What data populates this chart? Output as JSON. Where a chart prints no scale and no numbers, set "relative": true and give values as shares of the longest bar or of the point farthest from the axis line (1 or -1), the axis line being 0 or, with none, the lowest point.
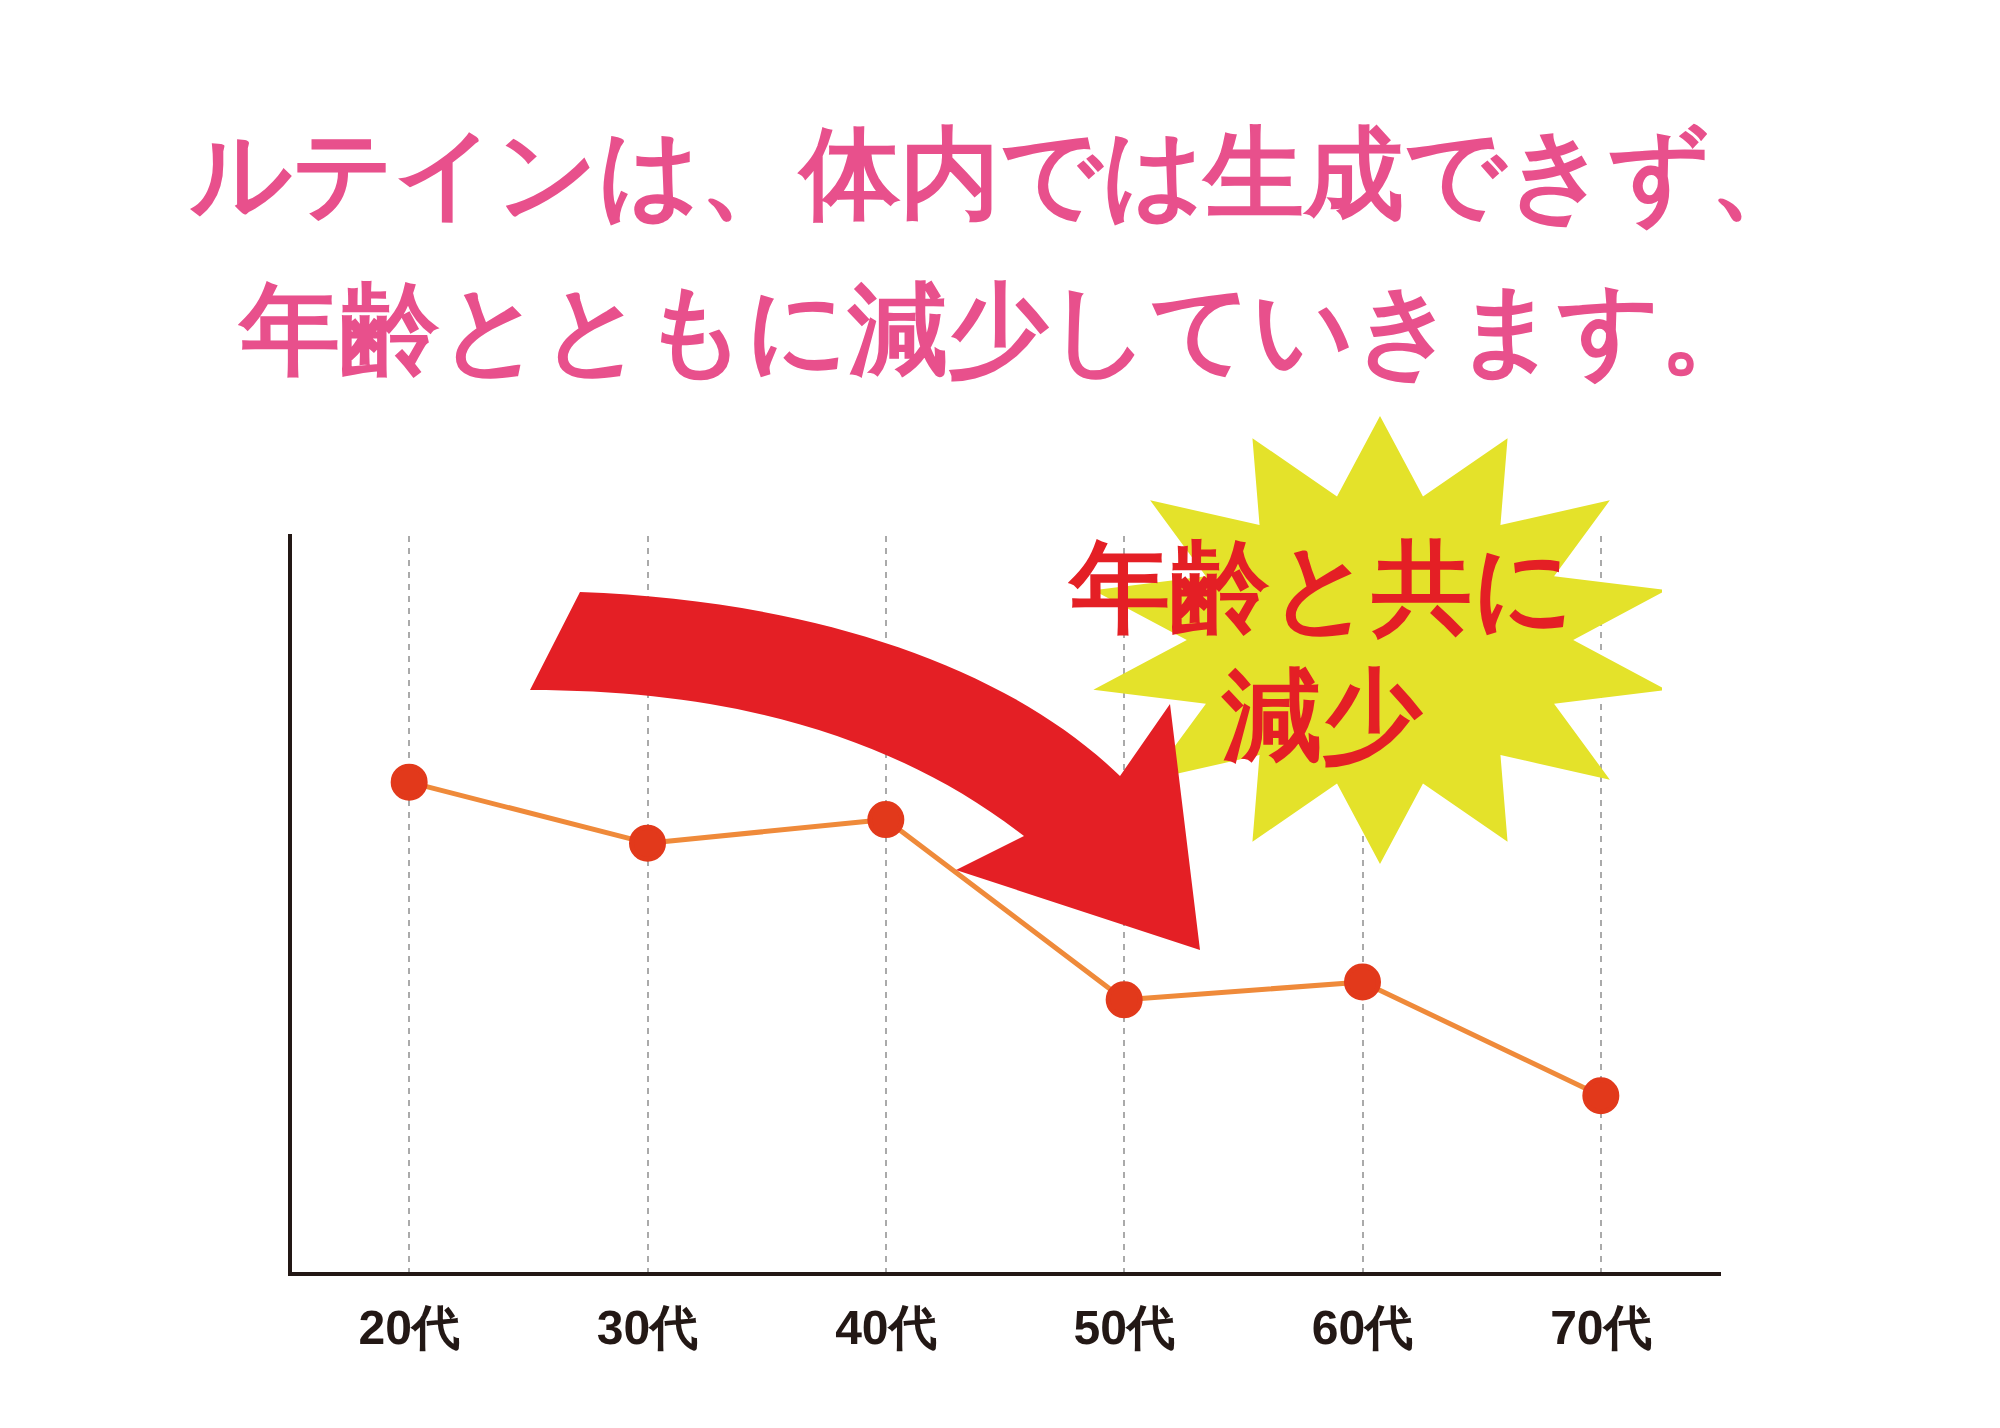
{
  "chart_data": {
    "type": "line",
    "title": "ルテインは、体内では生成できず、年齢とともに減少していきます。",
    "categories": [
      "20代",
      "30代",
      "40代",
      "50代",
      "60代",
      "70代"
    ],
    "series": [
      {
        "color": "#ef8a3a",
        "colors": [
          "#e2391b",
          "#e2391b",
          "#e2391b",
          "#e2391b",
          "#e2391b",
          "#e2391b"
        ],
        "values": [
          1,
          0.876,
          0.924,
          0.558,
          0.594,
          0.363
        ]
      }
    ],
    "relative": true,
    "grid": "x",
    "marker": "circle",
    "legend": false,
    "annotations": [
      "年齢と共に減少"
    ]
  }
}
